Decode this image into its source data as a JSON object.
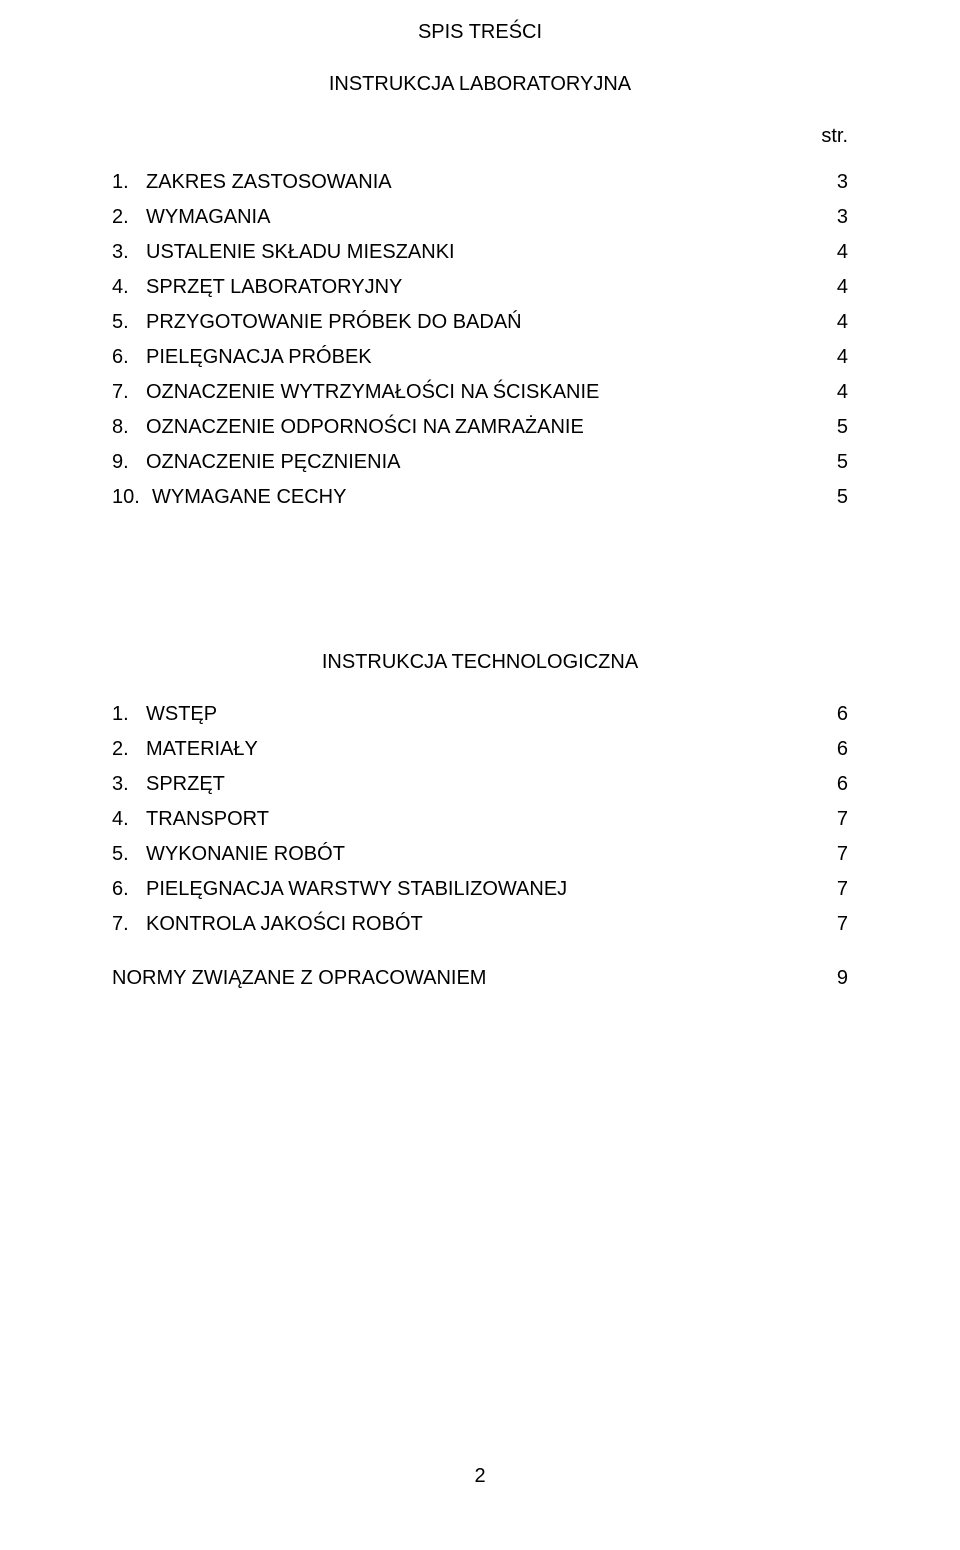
{
  "header": {
    "main_title": "SPIS TREŚCI",
    "subtitle1": "INSTRUKCJA LABORATORYJNA",
    "str_label": "str."
  },
  "toc1": [
    {
      "num": "1.",
      "label": "ZAKRES ZASTOSOWANIA",
      "page": "3"
    },
    {
      "num": "2.",
      "label": "WYMAGANIA",
      "page": "3"
    },
    {
      "num": "3.",
      "label": "USTALENIE SKŁADU MIESZANKI",
      "page": "4"
    },
    {
      "num": "4.",
      "label": "SPRZĘT LABORATORYJNY",
      "page": "4"
    },
    {
      "num": "5.",
      "label": "PRZYGOTOWANIE PRÓBEK  DO BADAŃ",
      "page": "4"
    },
    {
      "num": "6.",
      "label": "PIELĘGNACJA PRÓBEK",
      "page": "4"
    },
    {
      "num": "7.",
      "label": "OZNACZENIE WYTRZYMAŁOŚCI NA ŚCISKANIE",
      "page": "4"
    },
    {
      "num": "8.",
      "label": "OZNACZENIE ODPORNOŚCI NA ZAMRAŻANIE",
      "page": "5"
    },
    {
      "num": "9.",
      "label": "OZNACZENIE PĘCZNIENIA",
      "page": "5"
    },
    {
      "num": "10.",
      "label": "WYMAGANE CECHY",
      "page": "5"
    }
  ],
  "subtitle2": "INSTRUKCJA TECHNOLOGICZNA",
  "toc2": [
    {
      "num": "1.",
      "label": "WSTĘP",
      "page": "6"
    },
    {
      "num": "2.",
      "label": "MATERIAŁY",
      "page": "6"
    },
    {
      "num": "3.",
      "label": "SPRZĘT",
      "page": "6"
    },
    {
      "num": "4.",
      "label": "TRANSPORT",
      "page": "7"
    },
    {
      "num": "5.",
      "label": "WYKONANIE ROBÓT",
      "page": "7"
    },
    {
      "num": "6.",
      "label": "PIELĘGNACJA WARSTWY STABILIZOWANEJ",
      "page": "7"
    },
    {
      "num": "7.",
      "label": "KONTROLA JAKOŚCI ROBÓT",
      "page": "7"
    }
  ],
  "appendix": {
    "label": "NORMY ZWIĄZANE Z OPRACOWANIEM",
    "page": "9"
  },
  "footer": {
    "page_number": "2"
  },
  "style": {
    "font_family": "Arial",
    "font_size_pt": 15,
    "text_color": "#000000",
    "background_color": "#ffffff"
  }
}
